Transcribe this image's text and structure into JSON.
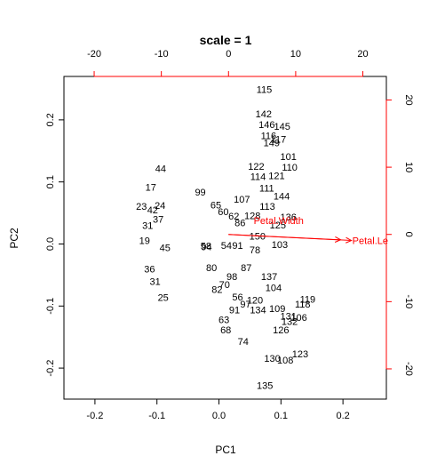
{
  "chart_data": {
    "type": "scatter",
    "title": "scale = 1",
    "xlabel": "PC1",
    "ylabel": "PC2",
    "xlim": [
      -0.25,
      0.27
    ],
    "ylim": [
      -0.25,
      0.27
    ],
    "x_ticks": [
      -0.2,
      -0.1,
      0.0,
      0.1,
      0.2
    ],
    "x_tick_labels": [
      "-0.2",
      "-0.1",
      "0.0",
      "0.1",
      "0.2"
    ],
    "y_ticks": [
      -0.2,
      -0.1,
      0.0,
      0.1,
      0.2
    ],
    "y_tick_labels": [
      "-0.2",
      "-0.1",
      "0.0",
      "0.1",
      "0.2"
    ],
    "top_axis": {
      "lim": [
        -24.5,
        23.5
      ],
      "ticks": [
        -20,
        -10,
        0,
        10,
        20
      ],
      "tick_labels": [
        "-20",
        "-10",
        "0",
        "10",
        "20"
      ],
      "color": "#ff0000"
    },
    "right_axis": {
      "lim": [
        -24.5,
        23.5
      ],
      "ticks": [
        -20,
        -10,
        0,
        10,
        20
      ],
      "tick_labels": [
        "-20",
        "-10",
        "0",
        "10",
        "20"
      ],
      "color": "#ff0000"
    },
    "grid": false,
    "observation_labels": [
      {
        "label": "115",
        "x": 0.073,
        "y": 0.249
      },
      {
        "label": "142",
        "x": 0.072,
        "y": 0.21
      },
      {
        "label": "146",
        "x": 0.077,
        "y": 0.193
      },
      {
        "label": "145",
        "x": 0.102,
        "y": 0.19
      },
      {
        "label": "116",
        "x": 0.08,
        "y": 0.175
      },
      {
        "label": "117",
        "x": 0.096,
        "y": 0.169
      },
      {
        "label": "149",
        "x": 0.085,
        "y": 0.163
      },
      {
        "label": "101",
        "x": 0.112,
        "y": 0.141
      },
      {
        "label": "110",
        "x": 0.114,
        "y": 0.124
      },
      {
        "label": "122",
        "x": 0.06,
        "y": 0.125
      },
      {
        "label": "114",
        "x": 0.063,
        "y": 0.109
      },
      {
        "label": "121",
        "x": 0.093,
        "y": 0.11
      },
      {
        "label": "111",
        "x": 0.077,
        "y": 0.09
      },
      {
        "label": "144",
        "x": 0.101,
        "y": 0.077
      },
      {
        "label": "107",
        "x": 0.037,
        "y": 0.072
      },
      {
        "label": "113",
        "x": 0.078,
        "y": 0.061
      },
      {
        "label": "136",
        "x": 0.112,
        "y": 0.044
      },
      {
        "label": "125",
        "x": 0.095,
        "y": 0.031
      },
      {
        "label": "62",
        "x": 0.024,
        "y": 0.045
      },
      {
        "label": "128",
        "x": 0.054,
        "y": 0.046
      },
      {
        "label": "86",
        "x": 0.034,
        "y": 0.034
      },
      {
        "label": "150",
        "x": 0.062,
        "y": 0.013
      },
      {
        "label": "103",
        "x": 0.098,
        "y": -0.001
      },
      {
        "label": "78",
        "x": 0.058,
        "y": -0.009
      },
      {
        "label": "99",
        "x": -0.03,
        "y": 0.084
      },
      {
        "label": "65",
        "x": -0.005,
        "y": 0.063
      },
      {
        "label": "60",
        "x": 0.007,
        "y": 0.052
      },
      {
        "label": "58",
        "x": -0.021,
        "y": -0.003
      },
      {
        "label": "94",
        "x": -0.02,
        "y": -0.004
      },
      {
        "label": "54",
        "x": 0.012,
        "y": -0.002
      },
      {
        "label": "91",
        "x": 0.03,
        "y": -0.002
      },
      {
        "label": "80",
        "x": -0.012,
        "y": -0.038
      },
      {
        "label": "98",
        "x": 0.021,
        "y": -0.052
      },
      {
        "label": "87",
        "x": 0.044,
        "y": -0.038
      },
      {
        "label": "82",
        "x": -0.003,
        "y": -0.073
      },
      {
        "label": "70",
        "x": 0.009,
        "y": -0.065
      },
      {
        "label": "104",
        "x": 0.088,
        "y": -0.07
      },
      {
        "label": "137",
        "x": 0.081,
        "y": -0.052
      },
      {
        "label": "56",
        "x": 0.03,
        "y": -0.085
      },
      {
        "label": "120",
        "x": 0.058,
        "y": -0.09
      },
      {
        "label": "97",
        "x": 0.043,
        "y": -0.097
      },
      {
        "label": "91",
        "x": 0.025,
        "y": -0.106
      },
      {
        "label": "134",
        "x": 0.063,
        "y": -0.106
      },
      {
        "label": "109",
        "x": 0.094,
        "y": -0.104
      },
      {
        "label": "119",
        "x": 0.143,
        "y": -0.089
      },
      {
        "label": "118",
        "x": 0.135,
        "y": -0.097
      },
      {
        "label": "131",
        "x": 0.112,
        "y": -0.116
      },
      {
        "label": "106",
        "x": 0.129,
        "y": -0.118
      },
      {
        "label": "132",
        "x": 0.114,
        "y": -0.125
      },
      {
        "label": "63",
        "x": 0.008,
        "y": -0.122
      },
      {
        "label": "68",
        "x": 0.011,
        "y": -0.138
      },
      {
        "label": "126",
        "x": 0.1,
        "y": -0.138
      },
      {
        "label": "74",
        "x": 0.039,
        "y": -0.157
      },
      {
        "label": "123",
        "x": 0.131,
        "y": -0.177
      },
      {
        "label": "130",
        "x": 0.086,
        "y": -0.184
      },
      {
        "label": "108",
        "x": 0.107,
        "y": -0.187
      },
      {
        "label": "135",
        "x": 0.074,
        "y": -0.228
      },
      {
        "label": "44",
        "x": -0.094,
        "y": 0.122
      },
      {
        "label": "17",
        "x": -0.11,
        "y": 0.092
      },
      {
        "label": "23",
        "x": -0.125,
        "y": 0.061
      },
      {
        "label": "24",
        "x": -0.095,
        "y": 0.062
      },
      {
        "label": "42",
        "x": -0.107,
        "y": 0.055
      },
      {
        "label": "37",
        "x": -0.098,
        "y": 0.04
      },
      {
        "label": "31",
        "x": -0.115,
        "y": 0.03
      },
      {
        "label": "19",
        "x": -0.12,
        "y": 0.006
      },
      {
        "label": "45",
        "x": -0.087,
        "y": -0.006
      },
      {
        "label": "36",
        "x": -0.112,
        "y": -0.04
      },
      {
        "label": "31",
        "x": -0.103,
        "y": -0.06
      },
      {
        "label": "25",
        "x": -0.09,
        "y": -0.086
      }
    ],
    "loadings": [
      {
        "label": "Petal.Width",
        "x": 16.7,
        "y": -0.8
      },
      {
        "label": "Petal.Length",
        "x": 18.3,
        "y": -0.9
      }
    ],
    "loading_label_text": [
      "Petal.Width",
      "Petal.Le"
    ]
  }
}
